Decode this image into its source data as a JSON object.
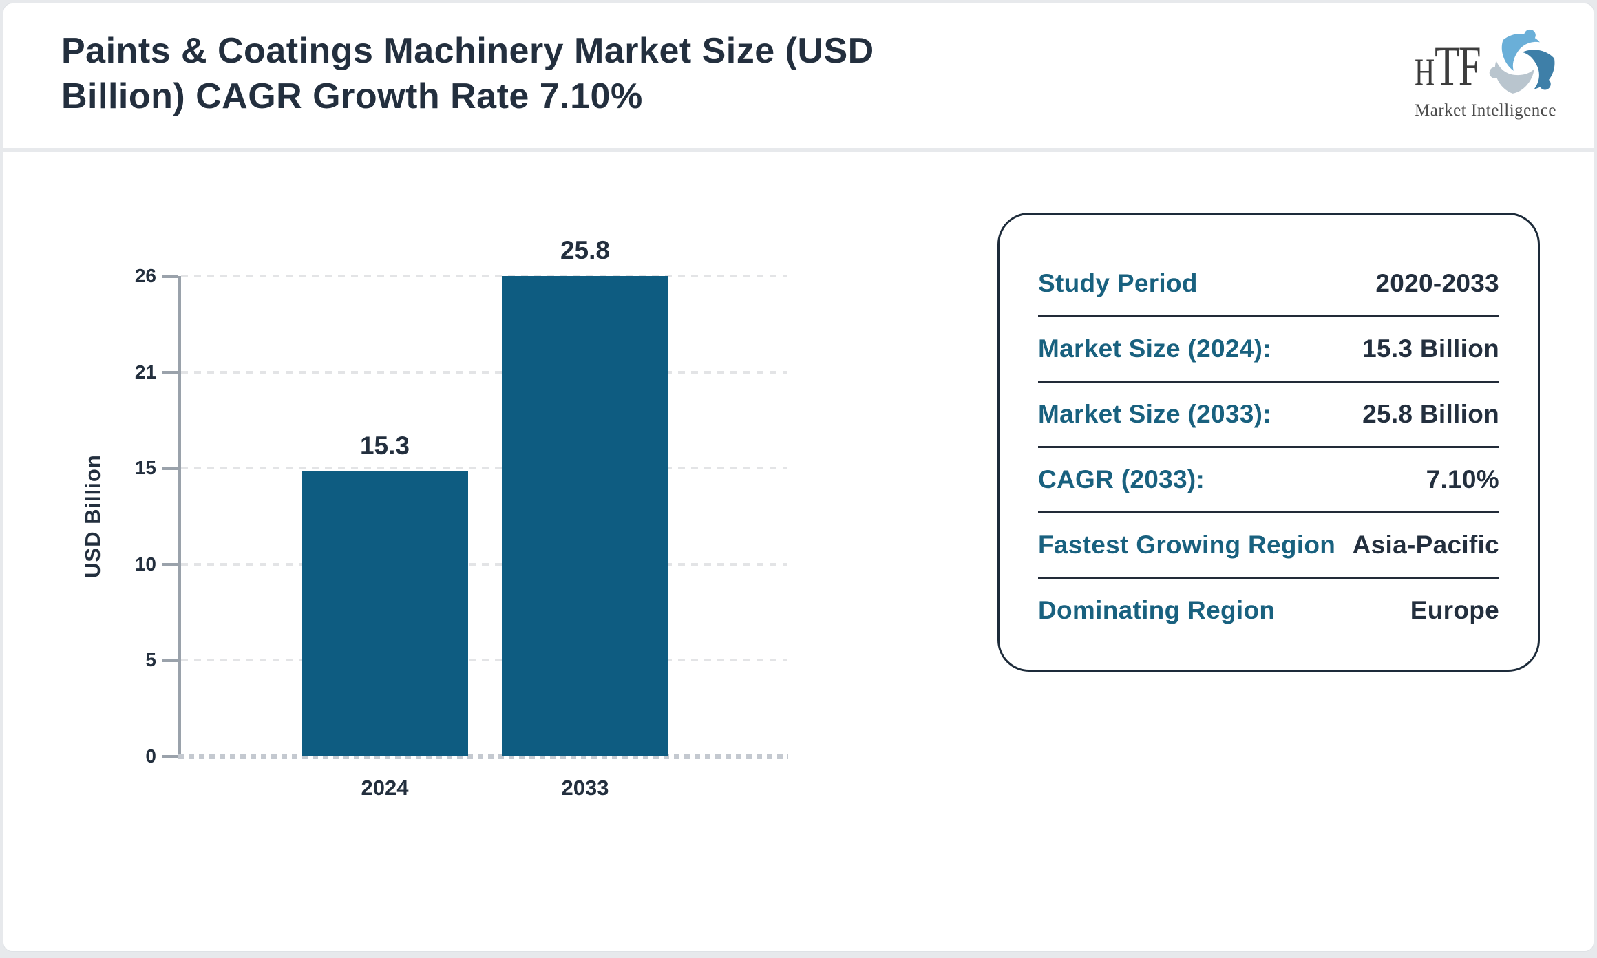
{
  "header": {
    "title": "Paints & Coatings Machinery Market Size (USD Billion) CAGR Growth Rate 7.10%"
  },
  "logo": {
    "text_h": "H",
    "text_tf": "TF",
    "subtitle": "Market Intelligence"
  },
  "chart_data": {
    "type": "bar",
    "categories": [
      "2024",
      "2033"
    ],
    "values": [
      15.3,
      25.8
    ],
    "value_labels": [
      "15.3",
      "25.8"
    ],
    "title": "",
    "xlabel": "",
    "ylabel": "USD Billion",
    "ylim": [
      0,
      25.8
    ],
    "ytick_labels": [
      "0",
      "5",
      "10",
      "15",
      "21",
      "26"
    ],
    "grid": "horizontal dashed",
    "legend": "none",
    "bar_color": "#0e5c81"
  },
  "info_card": {
    "rows": [
      {
        "label": "Study Period",
        "value": "2020-2033"
      },
      {
        "label": "Market Size (2024):",
        "value": "15.3 Billion"
      },
      {
        "label": "Market Size (2033):",
        "value": "25.8 Billion"
      },
      {
        "label": "CAGR (2033):",
        "value": "7.10%"
      },
      {
        "label": "Fastest Growing Region",
        "value": "Asia-Pacific"
      },
      {
        "label": "Dominating Region",
        "value": "Europe"
      }
    ]
  },
  "colors": {
    "navy_text": "#232f3e",
    "teal_label": "#19617f",
    "bar": "#0e5c81",
    "axis_gray": "#9aa2ab",
    "grid_gray": "#e3e4e6",
    "card_border": "#1d2b3a",
    "page_bg": "#e7e9ec",
    "logo_light_blue": "#6aafd8",
    "logo_dark_blue": "#3e7fa8",
    "logo_pale": "#b9c5ce"
  }
}
